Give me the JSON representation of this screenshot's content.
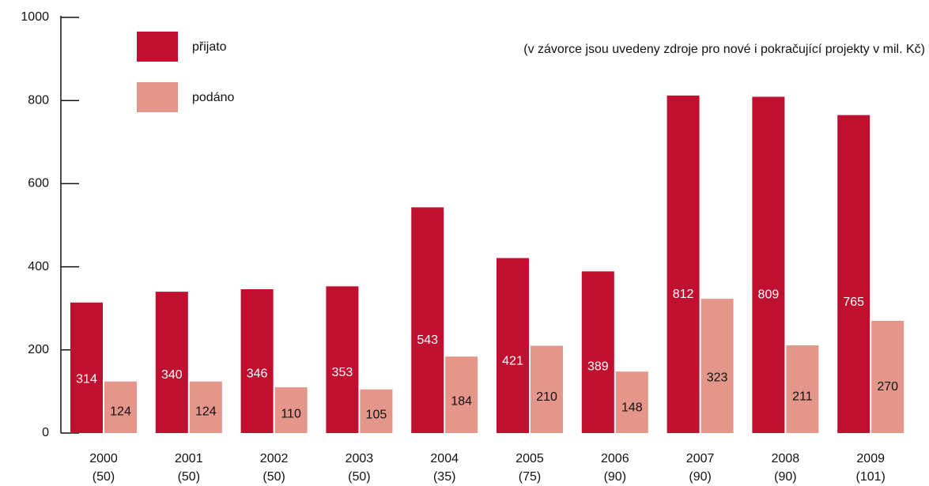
{
  "chart_data": {
    "type": "bar",
    "annotation": "(v závorce jsou uvedeny zdroje pro nové i pokračující projekty v mil. Kč)",
    "categories": [
      "2000",
      "2001",
      "2002",
      "2003",
      "2004",
      "2005",
      "2006",
      "2007",
      "2008",
      "2009"
    ],
    "category_sublabels": [
      "(50)",
      "(50)",
      "(50)",
      "(50)",
      "(35)",
      "(75)",
      "(90)",
      "(90)",
      "(90)",
      "(101)"
    ],
    "series": [
      {
        "name": "přijato",
        "color": "#c0102f",
        "values": [
          314,
          340,
          346,
          353,
          543,
          421,
          389,
          812,
          809,
          765
        ]
      },
      {
        "name": "podáno",
        "color": "#e4968a",
        "values": [
          124,
          124,
          110,
          105,
          184,
          210,
          148,
          323,
          211,
          270
        ]
      }
    ],
    "ylim": [
      0,
      1000
    ],
    "yticks": [
      0,
      200,
      400,
      600,
      800,
      1000
    ]
  }
}
